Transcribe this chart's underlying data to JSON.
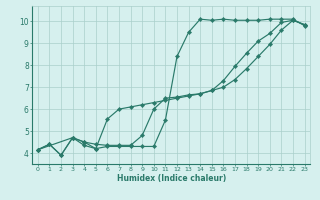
{
  "xlabel": "Humidex (Indice chaleur)",
  "xlim": [
    -0.5,
    23.5
  ],
  "ylim": [
    3.5,
    10.7
  ],
  "xticks": [
    0,
    1,
    2,
    3,
    4,
    5,
    6,
    7,
    8,
    9,
    10,
    11,
    12,
    13,
    14,
    15,
    16,
    17,
    18,
    19,
    20,
    21,
    22,
    23
  ],
  "yticks": [
    4,
    5,
    6,
    7,
    8,
    9,
    10
  ],
  "bg_color": "#d6f0ee",
  "line_color": "#2a7a6a",
  "grid_color": "#aacfcb",
  "line1_x": [
    0,
    1,
    2,
    3,
    4,
    5,
    6,
    7,
    8,
    9,
    10,
    11,
    12,
    13,
    14,
    15,
    16,
    17,
    18,
    19,
    20,
    21,
    22,
    23
  ],
  "line1_y": [
    4.15,
    4.4,
    3.9,
    4.7,
    4.35,
    4.2,
    4.3,
    4.3,
    4.3,
    4.3,
    4.3,
    5.5,
    8.4,
    9.5,
    10.1,
    10.05,
    10.1,
    10.05,
    10.05,
    10.05,
    10.1,
    10.1,
    10.1,
    9.8
  ],
  "line2_x": [
    0,
    1,
    2,
    3,
    4,
    5,
    6,
    7,
    8,
    9,
    10,
    11,
    12,
    13,
    14,
    15,
    16,
    17,
    18,
    19,
    20,
    21,
    22,
    23
  ],
  "line2_y": [
    4.15,
    4.4,
    3.9,
    4.7,
    4.5,
    4.4,
    4.35,
    4.35,
    4.35,
    4.8,
    6.0,
    6.5,
    6.55,
    6.65,
    6.7,
    6.85,
    7.3,
    7.95,
    8.55,
    9.1,
    9.45,
    9.95,
    10.05,
    9.85
  ],
  "line3_x": [
    0,
    3,
    4,
    5,
    6,
    7,
    8,
    9,
    10,
    11,
    12,
    13,
    14,
    15,
    16,
    17,
    18,
    19,
    20,
    21,
    22,
    23
  ],
  "line3_y": [
    4.15,
    4.7,
    4.5,
    4.2,
    5.55,
    6.0,
    6.1,
    6.2,
    6.3,
    6.4,
    6.5,
    6.6,
    6.7,
    6.85,
    7.0,
    7.35,
    7.85,
    8.4,
    8.95,
    9.6,
    10.05,
    9.85
  ]
}
